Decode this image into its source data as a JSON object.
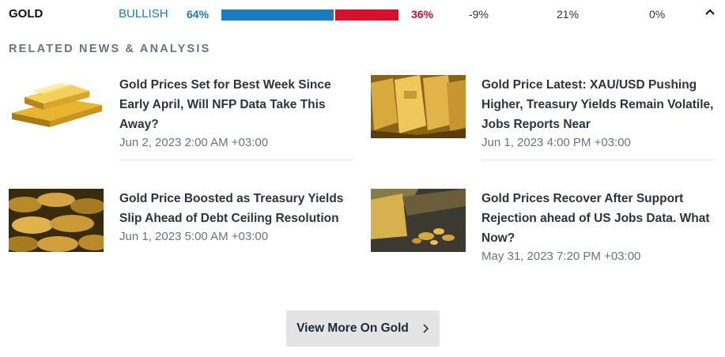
{
  "sentiment": {
    "asset": "GOLD",
    "bias": "BULLISH",
    "long_pct": "64%",
    "short_pct": "36%",
    "long_value": 0.64,
    "change_1": "-9%",
    "change_2": "21%",
    "change_3": "0%",
    "colors": {
      "long": "#1b7bbd",
      "short": "#d6112d"
    }
  },
  "related": {
    "title": "RELATED NEWS & ANALYSIS",
    "articles": [
      {
        "title": "Gold Prices Set for Best Week Since Early April, Will NFP Data Take This Away?",
        "date": "Jun 2, 2023 2:00 AM +03:00",
        "thumb": "gold-bars-stack-image"
      },
      {
        "title": "Gold Price Latest: XAU/USD Pushing Higher, Treasury Yields Remain Volatile, Jobs Reports Near",
        "date": "Jun 1, 2023 4:00 PM +03:00",
        "thumb": "gold-bars-closeup-image"
      },
      {
        "title": "Gold Price Boosted as Treasury Yields Slip Ahead of Debt Ceiling Resolution",
        "date": "Jun 1, 2023 5:00 AM +03:00",
        "thumb": "gold-coins-image"
      },
      {
        "title": "Gold Prices Recover After Support Rejection ahead of US Jobs Data. What Now?",
        "date": "May 31, 2023 7:20 PM +03:00",
        "thumb": "gold-nuggets-image"
      }
    ]
  },
  "view_more": {
    "label": "View More On Gold"
  }
}
